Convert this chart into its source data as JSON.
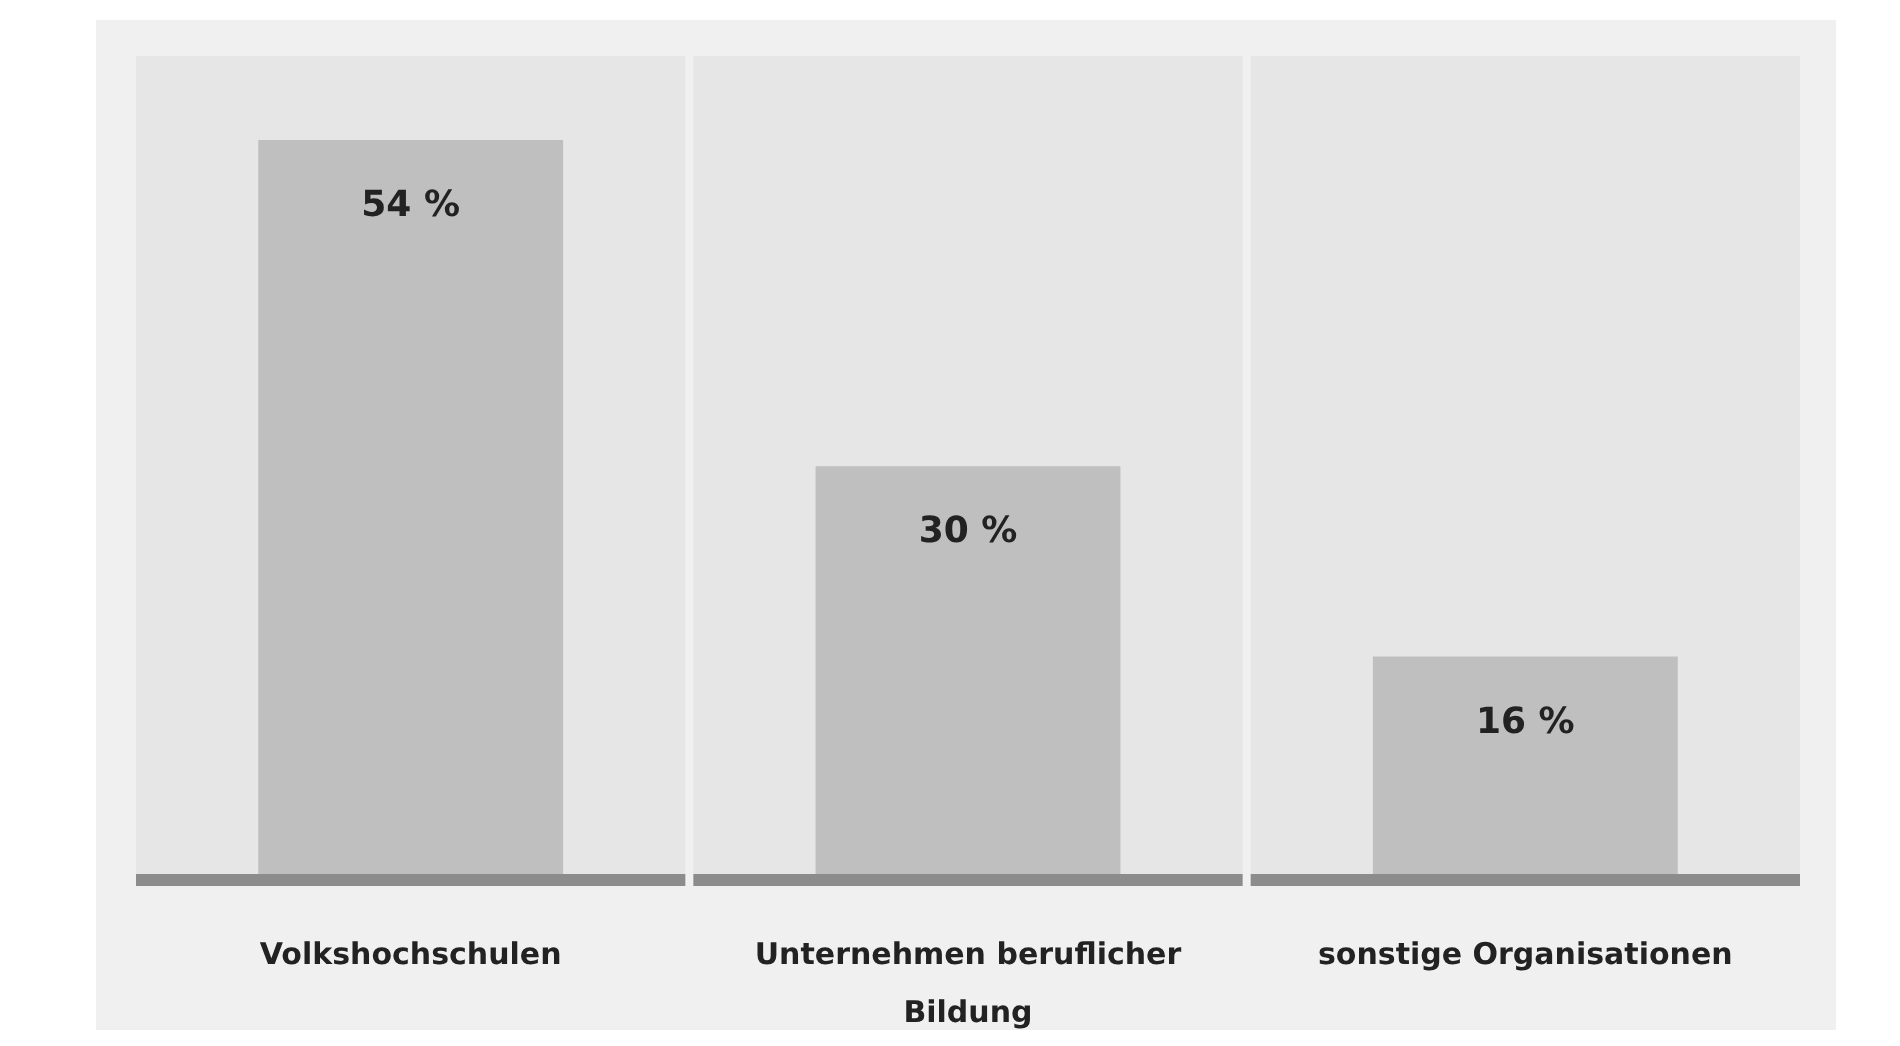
{
  "chart_data": {
    "type": "bar",
    "categories": [
      "Volkshochschulen",
      "Unternehmen beruflicher Bildung",
      "sonstige Organisationen"
    ],
    "values": [
      54,
      30,
      16
    ],
    "value_labels": [
      "54 %",
      "30 %",
      "16 %"
    ],
    "color": "#bfbfbf"
  }
}
